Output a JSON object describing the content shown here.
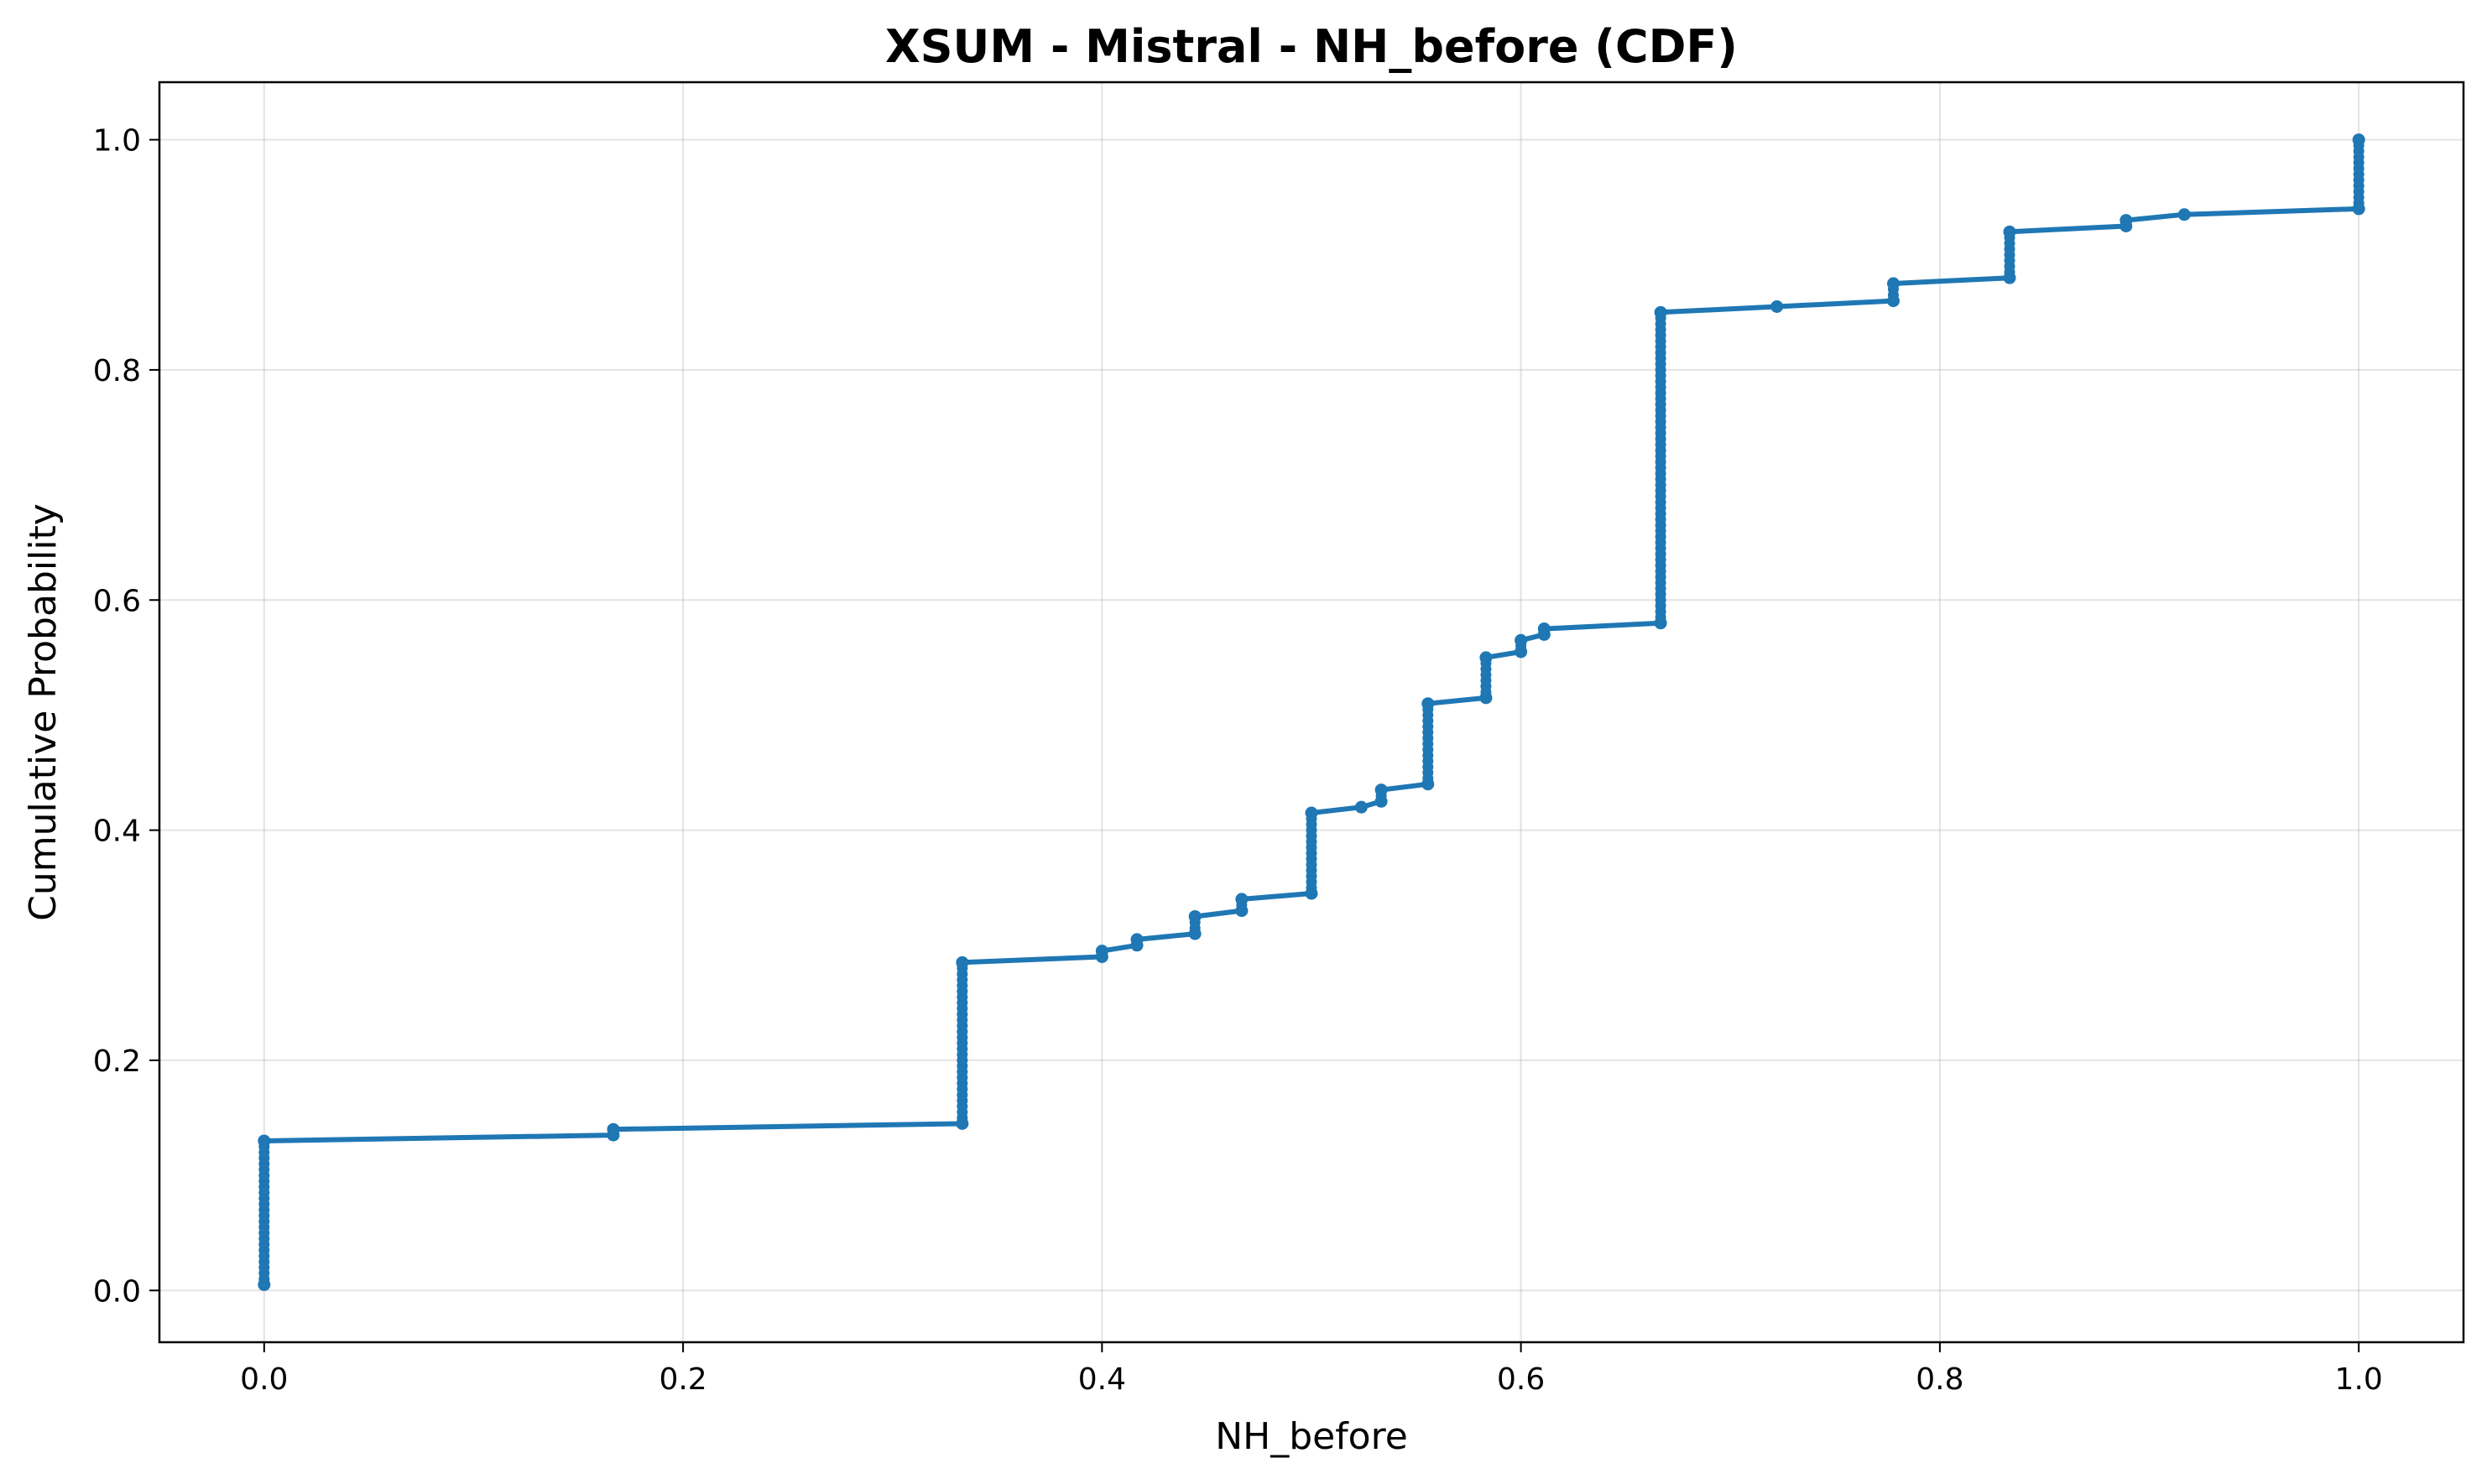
{
  "chart_data": {
    "type": "line",
    "title": "XSUM - Mistral - NH_before (CDF)",
    "xlabel": "NH_before",
    "ylabel": "Cumulative Probability",
    "xlim": [
      -0.05,
      1.05
    ],
    "ylim": [
      -0.045,
      1.05
    ],
    "x_ticks": [
      0.0,
      0.2,
      0.4,
      0.6,
      0.8,
      1.0
    ],
    "x_tick_labels": [
      "0.0",
      "0.2",
      "0.4",
      "0.6",
      "0.8",
      "1.0"
    ],
    "y_ticks": [
      0.0,
      0.2,
      0.4,
      0.6,
      0.8,
      1.0
    ],
    "y_tick_labels": [
      "0.0",
      "0.2",
      "0.4",
      "0.6",
      "0.8",
      "1.0"
    ],
    "grid": true,
    "colors": {
      "series": "#1f77b4"
    },
    "series": [
      {
        "marker": "circle",
        "x": [
          0.0,
          0.0,
          0.1667,
          0.1667,
          0.3333,
          0.3333,
          0.4,
          0.4,
          0.4167,
          0.4167,
          0.4444,
          0.4444,
          0.4667,
          0.4667,
          0.5,
          0.5,
          0.5238,
          0.5333,
          0.5333,
          0.5556,
          0.5556,
          0.5833,
          0.5833,
          0.6,
          0.6,
          0.6111,
          0.6111,
          0.6667,
          0.6667,
          0.7222,
          0.7778,
          0.7778,
          0.8333,
          0.8333,
          0.8889,
          0.8889,
          0.9167,
          1.0,
          1.0
        ],
        "y": [
          0.005,
          0.13,
          0.135,
          0.14,
          0.145,
          0.285,
          0.29,
          0.295,
          0.3,
          0.305,
          0.31,
          0.325,
          0.33,
          0.34,
          0.345,
          0.415,
          0.42,
          0.425,
          0.435,
          0.44,
          0.51,
          0.515,
          0.55,
          0.555,
          0.565,
          0.57,
          0.575,
          0.58,
          0.85,
          0.855,
          0.86,
          0.875,
          0.88,
          0.92,
          0.925,
          0.93,
          0.935,
          0.94,
          1.0
        ]
      }
    ]
  }
}
